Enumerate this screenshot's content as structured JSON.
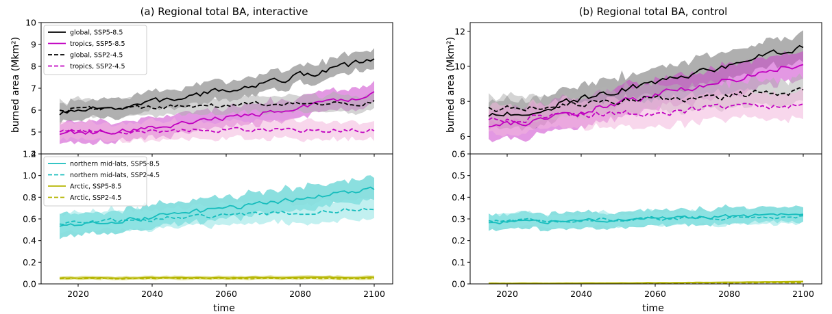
{
  "panels": [
    {
      "title": "(a) Regional total BA, interactive",
      "ylabel": "burned area (Mkm²)",
      "xlabel": "time",
      "top": {
        "ylim": [
          4,
          10
        ],
        "yticks": [
          5,
          6,
          7,
          8,
          9,
          10
        ],
        "ytick_labels": [
          "5",
          "6",
          "7",
          "8",
          "9",
          "10"
        ],
        "hidden_tick_label": "4",
        "series": [
          {
            "name": "global, SSP5-8.5",
            "color": "#000000",
            "fill": "#6e6e6e",
            "dash": false,
            "start": 5.85,
            "end": 8.3,
            "unc": 0.42,
            "curve": 1.3,
            "noise": 0.25
          },
          {
            "name": "tropics, SSP5-8.5",
            "color": "#c000c0",
            "fill": "#cc44cc",
            "dash": false,
            "start": 4.95,
            "end": 6.75,
            "unc": 0.45,
            "curve": 1.5,
            "noise": 0.22
          },
          {
            "name": "global, SSP2-4.5",
            "color": "#000000",
            "fill": "#b0b0b0",
            "dash": true,
            "start": 6.05,
            "end": 6.35,
            "unc": 0.38,
            "curve": 1.0,
            "noise": 0.2
          },
          {
            "name": "tropics, SSP2-4.5",
            "color": "#c000c0",
            "fill": "#f2b6dc",
            "dash": true,
            "start": 5.05,
            "end": 5.1,
            "unc": 0.4,
            "curve": 1.0,
            "noise": 0.18
          }
        ]
      },
      "bottom": {
        "ylim": [
          0,
          1.2
        ],
        "yticks": [
          0.0,
          0.2,
          0.4,
          0.6,
          0.8,
          1.0,
          1.2
        ],
        "ytick_labels": [
          "0.0",
          "0.2",
          "0.4",
          "0.6",
          "0.8",
          "1.0",
          "1.2"
        ],
        "series": [
          {
            "name": "northern mid-lats, SSP5-8.5",
            "color": "#17bdbd",
            "fill": "#2cc4c4",
            "dash": false,
            "start": 0.54,
            "end": 0.88,
            "unc": 0.1,
            "curve": 1.2,
            "noise": 0.04
          },
          {
            "name": "northern mid-lats, SSP2-4.5",
            "color": "#17bdbd",
            "fill": "#8fe3e3",
            "dash": true,
            "start": 0.56,
            "end": 0.7,
            "unc": 0.09,
            "curve": 1.0,
            "noise": 0.035
          },
          {
            "name": "Arctic, SSP5-8.5",
            "color": "#b5b500",
            "fill": "#c9c930",
            "dash": false,
            "start": 0.055,
            "end": 0.06,
            "unc": 0.015,
            "curve": 1.0,
            "noise": 0.006
          },
          {
            "name": "Arctic, SSP2-4.5",
            "color": "#b5b500",
            "fill": "#e0e080",
            "dash": true,
            "start": 0.05,
            "end": 0.05,
            "unc": 0.012,
            "curve": 1.0,
            "noise": 0.006
          }
        ]
      }
    },
    {
      "title": "(b) Regional total BA, control",
      "ylabel": "burned area (Mkm²)",
      "xlabel": "time",
      "top": {
        "ylim": [
          5,
          12.5
        ],
        "yticks": [
          6,
          8,
          10,
          12
        ],
        "ytick_labels": [
          "6",
          "8",
          "10",
          "12"
        ],
        "series": [
          {
            "name": "global, SSP5-8.5",
            "color": "#000000",
            "fill": "#6e6e6e",
            "dash": false,
            "start": 7.1,
            "end": 11.1,
            "unc": 0.75,
            "curve": 1.1,
            "noise": 0.35
          },
          {
            "name": "tropics, SSP5-8.5",
            "color": "#c000c0",
            "fill": "#cc44cc",
            "dash": false,
            "start": 6.5,
            "end": 10.2,
            "unc": 0.8,
            "curve": 1.1,
            "noise": 0.35
          },
          {
            "name": "global, SSP2-4.5",
            "color": "#000000",
            "fill": "#b0b0b0",
            "dash": true,
            "start": 7.6,
            "end": 8.5,
            "unc": 0.7,
            "curve": 0.8,
            "noise": 0.4
          },
          {
            "name": "tropics, SSP2-4.5",
            "color": "#c000c0",
            "fill": "#f2b6dc",
            "dash": true,
            "start": 6.9,
            "end": 7.8,
            "unc": 0.75,
            "curve": 0.8,
            "noise": 0.35
          }
        ]
      },
      "bottom": {
        "ylim": [
          0,
          0.6
        ],
        "yticks": [
          0.0,
          0.1,
          0.2,
          0.3,
          0.4,
          0.5,
          0.6
        ],
        "ytick_labels": [
          "0.0",
          "0.1",
          "0.2",
          "0.3",
          "0.4",
          "0.5",
          "0.6"
        ],
        "series": [
          {
            "name": "northern mid-lats, SSP5-8.5",
            "color": "#17bdbd",
            "fill": "#2cc4c4",
            "dash": false,
            "start": 0.28,
            "end": 0.32,
            "unc": 0.035,
            "curve": 1.0,
            "noise": 0.015
          },
          {
            "name": "northern mid-lats, SSP2-4.5",
            "color": "#17bdbd",
            "fill": "#8fe3e3",
            "dash": true,
            "start": 0.29,
            "end": 0.31,
            "unc": 0.03,
            "curve": 1.0,
            "noise": 0.013
          },
          {
            "name": "Arctic, SSP5-8.5",
            "color": "#b5b500",
            "fill": "#c9c930",
            "dash": false,
            "start": 0.003,
            "end": 0.011,
            "unc": 0.003,
            "curve": 2.0,
            "noise": 0.001
          },
          {
            "name": "Arctic, SSP2-4.5",
            "color": "#b5b500",
            "fill": "#e0e080",
            "dash": true,
            "start": 0.003,
            "end": 0.006,
            "unc": 0.002,
            "curve": 2.0,
            "noise": 0.001
          }
        ]
      }
    }
  ],
  "xaxis": {
    "range": [
      2010,
      2105
    ],
    "ticks": [
      2020,
      2040,
      2060,
      2080,
      2100
    ],
    "tick_labels": [
      "2020",
      "2040",
      "2060",
      "2080",
      "2100"
    ],
    "series_years": [
      2015,
      2100
    ]
  },
  "chart_data": [
    {
      "type": "line",
      "title": "(a) Regional total BA, interactive",
      "xlabel": "time",
      "ylabel": "burned area (Mkm²)",
      "x_range": [
        2015,
        2100
      ],
      "subplots": [
        {
          "position": "top",
          "ylim": [
            4,
            10
          ],
          "legend": "top-left",
          "series": [
            {
              "name": "global, SSP5-8.5",
              "x": [
                2015,
                2040,
                2060,
                2080,
                2100
              ],
              "y": [
                5.85,
                6.3,
                6.9,
                7.4,
                8.3
              ]
            },
            {
              "name": "tropics, SSP5-8.5",
              "x": [
                2015,
                2040,
                2060,
                2080,
                2100
              ],
              "y": [
                4.95,
                5.3,
                5.6,
                6.0,
                6.75
              ]
            },
            {
              "name": "global, SSP2-4.5",
              "x": [
                2015,
                2040,
                2060,
                2080,
                2100
              ],
              "y": [
                6.05,
                6.3,
                6.4,
                6.3,
                6.35
              ]
            },
            {
              "name": "tropics, SSP2-4.5",
              "x": [
                2015,
                2040,
                2060,
                2080,
                2100
              ],
              "y": [
                5.05,
                5.3,
                5.5,
                5.3,
                5.1
              ]
            }
          ]
        },
        {
          "position": "bottom",
          "ylim": [
            0,
            1.2
          ],
          "legend": "top-left",
          "series": [
            {
              "name": "northern mid-lats, SSP5-8.5",
              "x": [
                2015,
                2040,
                2060,
                2080,
                2100
              ],
              "y": [
                0.54,
                0.62,
                0.66,
                0.76,
                0.88
              ]
            },
            {
              "name": "northern mid-lats, SSP2-4.5",
              "x": [
                2015,
                2040,
                2060,
                2080,
                2100
              ],
              "y": [
                0.56,
                0.6,
                0.64,
                0.68,
                0.7
              ]
            },
            {
              "name": "Arctic, SSP5-8.5",
              "x": [
                2015,
                2040,
                2060,
                2080,
                2100
              ],
              "y": [
                0.055,
                0.045,
                0.045,
                0.045,
                0.06
              ]
            },
            {
              "name": "Arctic, SSP2-4.5",
              "x": [
                2015,
                2040,
                2060,
                2080,
                2100
              ],
              "y": [
                0.05,
                0.04,
                0.04,
                0.04,
                0.05
              ]
            }
          ]
        }
      ]
    },
    {
      "type": "line",
      "title": "(b) Regional total BA, control",
      "xlabel": "time",
      "ylabel": "burned area (Mkm²)",
      "x_range": [
        2015,
        2100
      ],
      "subplots": [
        {
          "position": "top",
          "ylim": [
            5,
            12.5
          ],
          "series": [
            {
              "name": "global, SSP5-8.5",
              "x": [
                2015,
                2040,
                2060,
                2080,
                2100
              ],
              "y": [
                7.1,
                8.3,
                9.1,
                10.0,
                11.1
              ]
            },
            {
              "name": "tropics, SSP5-8.5",
              "x": [
                2015,
                2040,
                2060,
                2080,
                2100
              ],
              "y": [
                6.5,
                7.6,
                8.4,
                9.3,
                10.2
              ]
            },
            {
              "name": "global, SSP2-4.5",
              "x": [
                2015,
                2040,
                2060,
                2080,
                2100
              ],
              "y": [
                7.6,
                8.4,
                8.7,
                8.6,
                8.5
              ]
            },
            {
              "name": "tropics, SSP2-4.5",
              "x": [
                2015,
                2040,
                2060,
                2080,
                2100
              ],
              "y": [
                6.9,
                7.6,
                8.0,
                8.0,
                7.8
              ]
            }
          ]
        },
        {
          "position": "bottom",
          "ylim": [
            0,
            0.6
          ],
          "series": [
            {
              "name": "northern mid-lats, SSP5-8.5",
              "x": [
                2015,
                2040,
                2060,
                2080,
                2100
              ],
              "y": [
                0.28,
                0.28,
                0.29,
                0.3,
                0.32
              ]
            },
            {
              "name": "northern mid-lats, SSP2-4.5",
              "x": [
                2015,
                2040,
                2060,
                2080,
                2100
              ],
              "y": [
                0.29,
                0.29,
                0.3,
                0.31,
                0.31
              ]
            },
            {
              "name": "Arctic, SSP5-8.5",
              "x": [
                2015,
                2040,
                2060,
                2080,
                2100
              ],
              "y": [
                0.003,
                0.004,
                0.005,
                0.007,
                0.011
              ]
            },
            {
              "name": "Arctic, SSP2-4.5",
              "x": [
                2015,
                2040,
                2060,
                2080,
                2100
              ],
              "y": [
                0.003,
                0.003,
                0.004,
                0.005,
                0.006
              ]
            }
          ]
        }
      ]
    }
  ]
}
